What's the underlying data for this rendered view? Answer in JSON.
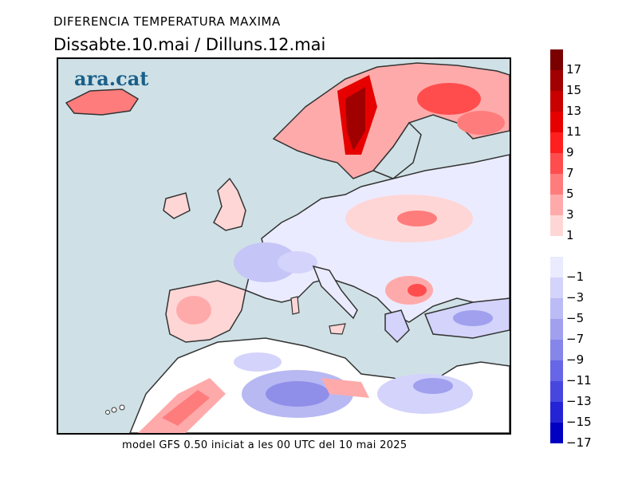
{
  "header": {
    "title": "DIFERENCIA TEMPERATURA MAXIMA",
    "subtitle": "Dissabte.10.mai / Dilluns.12.mai"
  },
  "map": {
    "brand": "ara.cat",
    "sea_color": "#cfe1e6",
    "coast_color": "#333333"
  },
  "footer": {
    "caption": "model GFS 0.50 iniciat a les 00 UTC del 10 mai 2025"
  },
  "legend": {
    "bins": [
      {
        "label": "17",
        "color": "#7a0000"
      },
      {
        "label": "15",
        "color": "#a10000"
      },
      {
        "label": "13",
        "color": "#c80000"
      },
      {
        "label": "11",
        "color": "#e60000"
      },
      {
        "label": "9",
        "color": "#ff1f1f"
      },
      {
        "label": "7",
        "color": "#ff4d4d"
      },
      {
        "label": "5",
        "color": "#ff7c7c"
      },
      {
        "label": "3",
        "color": "#ffaaaa"
      },
      {
        "label": "1",
        "color": "#ffd6d6"
      },
      {
        "label": "",
        "color": "#ffffff"
      },
      {
        "label": "−1",
        "color": "#ebebff"
      },
      {
        "label": "−3",
        "color": "#d3d3fb"
      },
      {
        "label": "−5",
        "color": "#bbbbf5"
      },
      {
        "label": "−7",
        "color": "#a0a0ef"
      },
      {
        "label": "−9",
        "color": "#8585ea"
      },
      {
        "label": "−11",
        "color": "#6666e6"
      },
      {
        "label": "−13",
        "color": "#4747e0"
      },
      {
        "label": "−15",
        "color": "#2424d6"
      },
      {
        "label": "−17",
        "color": "#0000c2"
      }
    ]
  }
}
